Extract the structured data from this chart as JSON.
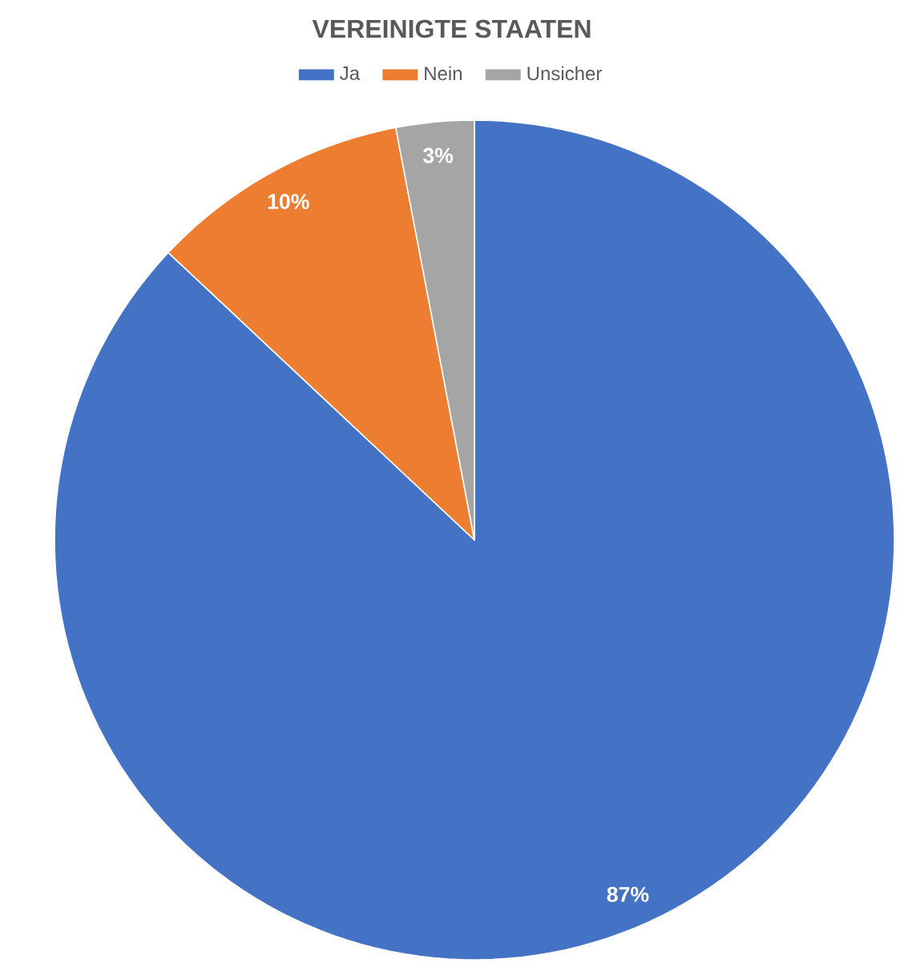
{
  "chart_data": {
    "type": "pie",
    "title": "VEREINIGTE STAATEN",
    "categories": [
      "Ja",
      "Nein",
      "Unsicher"
    ],
    "values": [
      87,
      10,
      3
    ],
    "colors": [
      "#4472c4",
      "#ed7d31",
      "#a5a5a5"
    ],
    "value_labels": [
      "87%",
      "10%",
      "3%"
    ],
    "legend": "top"
  }
}
